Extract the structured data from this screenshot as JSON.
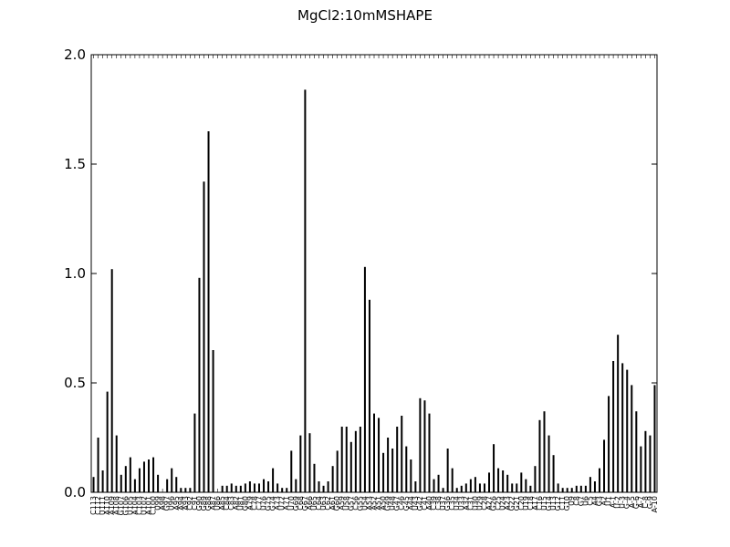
{
  "chart_data": {
    "type": "bar",
    "title": "MgCl2:10mMSHAPE",
    "xlabel": "",
    "ylabel": "",
    "ylim": [
      0,
      2.0
    ],
    "yticks": [
      0.0,
      0.5,
      1.0,
      1.5,
      2.0
    ],
    "ytick_labels": [
      "0.0",
      "0.5",
      "1.0",
      "1.5",
      "2.0"
    ],
    "grid": false,
    "legend": "none",
    "bar_color": "#000000",
    "categories": [
      "C113",
      "C112",
      "U111",
      "A110",
      "A109",
      "A108",
      "G107",
      "G106",
      "U105",
      "A104",
      "C103",
      "U102",
      "A101",
      "C100",
      "U99",
      "A98",
      "G97",
      "U96",
      "A95",
      "A94",
      "A93",
      "C92",
      "C91",
      "G90",
      "G89",
      "G88",
      "A87",
      "U86",
      "A85",
      "C84",
      "C83",
      "A82",
      "U81",
      "G80",
      "A79",
      "C78",
      "C77",
      "U76",
      "G75",
      "G74",
      "A73",
      "U72",
      "A71",
      "U70",
      "G69",
      "C68",
      "G67",
      "A66",
      "U65",
      "C64",
      "U63",
      "C62",
      "A61",
      "G60",
      "A59",
      "U58",
      "G57",
      "C56",
      "G55",
      "U54",
      "A53",
      "A52",
      "A51",
      "A50",
      "G49",
      "U48",
      "G47",
      "C46",
      "G45",
      "A44",
      "U43",
      "G42",
      "C41",
      "A40",
      "C39",
      "C38",
      "U37",
      "G36",
      "C35",
      "U34",
      "U33",
      "A32",
      "C31",
      "U30",
      "U29",
      "C28",
      "A27",
      "G26",
      "C25",
      "U24",
      "A23",
      "G22",
      "G21",
      "C20",
      "U19",
      "C18",
      "A17",
      "C16",
      "U15",
      "G14",
      "U13",
      "G12",
      "C11",
      "G10",
      "U9",
      "C8",
      "G7",
      "U6",
      "C5",
      "A4",
      "G3",
      "A2",
      "U1",
      "A-1",
      "U-2",
      "U-3",
      "G-4",
      "A-5",
      "G-6",
      "A-7",
      "C-8",
      "G-9",
      "A-10"
    ],
    "values": [
      0.07,
      0.25,
      0.1,
      0.46,
      1.02,
      0.26,
      0.08,
      0.12,
      0.16,
      0.06,
      0.11,
      0.14,
      0.15,
      0.16,
      0.08,
      0.0,
      0.06,
      0.11,
      0.07,
      0.02,
      0.02,
      0.02,
      0.36,
      0.98,
      1.42,
      1.65,
      0.65,
      0.0,
      0.03,
      0.03,
      0.04,
      0.03,
      0.03,
      0.04,
      0.05,
      0.04,
      0.04,
      0.06,
      0.05,
      0.11,
      0.04,
      0.02,
      0.02,
      0.19,
      0.06,
      0.26,
      1.84,
      0.27,
      0.13,
      0.05,
      0.03,
      0.05,
      0.12,
      0.19,
      0.3,
      0.3,
      0.23,
      0.28,
      0.3,
      1.03,
      0.88,
      0.36,
      0.34,
      0.18,
      0.25,
      0.2,
      0.3,
      0.35,
      0.21,
      0.15,
      0.05,
      0.43,
      0.42,
      0.36,
      0.06,
      0.08,
      0.02,
      0.2,
      0.11,
      0.02,
      0.03,
      0.04,
      0.06,
      0.07,
      0.04,
      0.04,
      0.09,
      0.22,
      0.11,
      0.1,
      0.08,
      0.04,
      0.04,
      0.09,
      0.06,
      0.03,
      0.12,
      0.33,
      0.37,
      0.26,
      0.17,
      0.04,
      0.02,
      0.02,
      0.02,
      0.03,
      0.03,
      0.03,
      0.07,
      0.05,
      0.11,
      0.24,
      0.44,
      0.6,
      0.72,
      0.59,
      0.56,
      0.49,
      0.37,
      0.21,
      0.28,
      0.26,
      0.49
    ]
  }
}
